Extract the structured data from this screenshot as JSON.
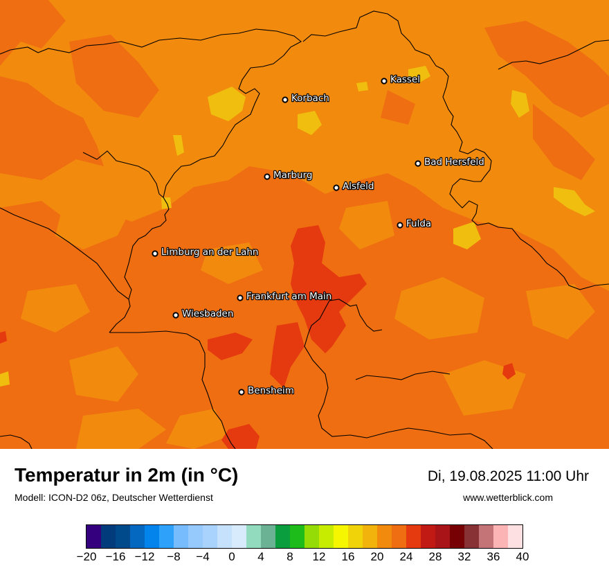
{
  "map": {
    "cities": [
      {
        "name": "Kassel"
      },
      {
        "name": "Korbach"
      },
      {
        "name": "Bad Hersfeld"
      },
      {
        "name": "Marburg"
      },
      {
        "name": "Alsfeld"
      },
      {
        "name": "Fulda"
      },
      {
        "name": "Limburg an der Lahn"
      },
      {
        "name": "Frankfurt am Main"
      },
      {
        "name": "Wiesbaden"
      },
      {
        "name": "Bensheim"
      }
    ],
    "colors": {
      "t22_24": "#f28a0e",
      "t24_26": "#ef6e11",
      "t26_28": "#e5390f",
      "t20_22": "#f0be0f",
      "border": "#000000"
    }
  },
  "footer": {
    "title": "Temperatur in 2m (in °C)",
    "subtitle": "Modell: ICON-D2 06z, Deutscher Wetterdienst",
    "datetime": "Di, 19.08.2025 11:00 Uhr",
    "website": "www.wetterblick.com"
  },
  "legend": {
    "colors": [
      "#34007e",
      "#023b7c",
      "#004a8c",
      "#0468c0",
      "#0384ec",
      "#2ea1fb",
      "#77bcfc",
      "#96c9fc",
      "#a9d3fc",
      "#c6e1fc",
      "#d8ebfc",
      "#93dbbf",
      "#6bb294",
      "#0a9e3e",
      "#1dbc1a",
      "#95dc06",
      "#c8ec00",
      "#f6f600",
      "#f1d309",
      "#f2b30c",
      "#f28a0e",
      "#ef6e11",
      "#e5390f",
      "#c11a14",
      "#a81418",
      "#760003",
      "#883235",
      "#c47476",
      "#fcb4b4",
      "#fde0e2"
    ],
    "ticks": [
      "−20",
      "−16",
      "−12",
      "−8",
      "−4",
      "0",
      "4",
      "8",
      "12",
      "16",
      "20",
      "24",
      "28",
      "32",
      "36",
      "40"
    ]
  }
}
